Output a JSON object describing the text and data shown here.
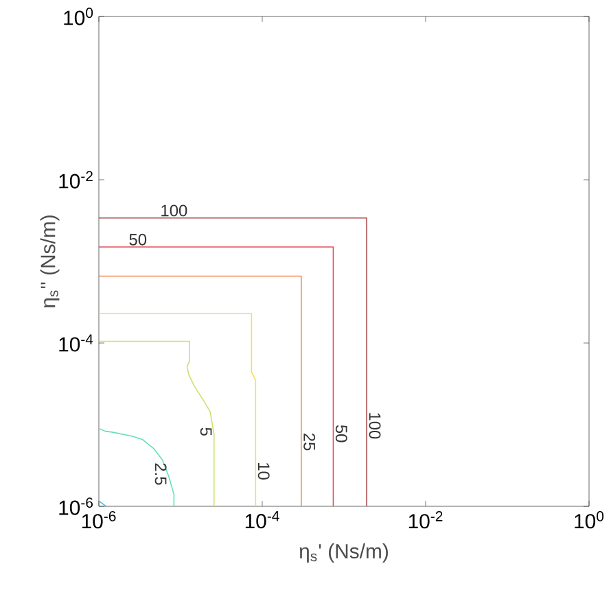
{
  "chart_data": {
    "type": "line",
    "xlabel": "η$_{s}$'   (Ns/m)",
    "ylabel": "η$_{s}$''   (Ns/m)",
    "log": "xy",
    "grid": false,
    "marker": "none",
    "line_style": "solid",
    "xlim": [
      1e-06,
      1
    ],
    "ylim": [
      1e-06,
      1
    ],
    "xticks": [
      {
        "value": 1e-06,
        "label": "10$^{-6}$"
      },
      {
        "value": 0.0001,
        "label": "10$^{-4}$"
      },
      {
        "value": 0.01,
        "label": "10$^{-2}$"
      },
      {
        "value": 1,
        "label": "10$^{0}$"
      }
    ],
    "yticks": [
      {
        "value": 1e-06,
        "label": "10$^{-6}$"
      },
      {
        "value": 0.0001,
        "label": "10$^{-4}$"
      },
      {
        "value": 0.01,
        "label": "10$^{-2}$"
      },
      {
        "value": 1,
        "label": "10$^{0}$"
      }
    ],
    "series": [
      {
        "name": "100",
        "color": "#a8484e",
        "x": [
          1e-06,
          0.0019,
          0.0019
        ],
        "values": [
          0.0034,
          0.0034,
          1e-06
        ]
      },
      {
        "name": "50",
        "color": "#e0505c",
        "x": [
          1e-06,
          0.00074,
          0.00074
        ],
        "values": [
          0.0015,
          0.0015,
          1e-06
        ]
      },
      {
        "name": "25",
        "color": "#f48a5c",
        "x": [
          1e-06,
          0.0003,
          0.0003
        ],
        "values": [
          0.00066,
          0.00066,
          1e-06
        ]
      },
      {
        "name": "10",
        "color": "#f2e05a",
        "x": [
          1e-06,
          7.4e-05,
          7.4e-05,
          8.3e-05,
          8.3e-05
        ],
        "values": [
          0.00023,
          0.00023,
          4.4e-05,
          3.5e-05,
          1e-06
        ]
      },
      {
        "name": "5",
        "color": "#c8e46c",
        "x": [
          1e-06,
          1.29e-05,
          1.29e-05,
          1.2e-05,
          1.26e-05,
          1.48e-05,
          1.9e-05,
          2.3e-05,
          2.57e-05,
          2.57e-05
        ],
        "values": [
          0.000105,
          0.000105,
          6e-05,
          5.2e-05,
          4.1e-05,
          2.95e-05,
          2e-05,
          1.45e-05,
          7.6e-06,
          1e-06
        ]
      },
      {
        "name": "2.5",
        "color": "#5ee4b4",
        "x": [
          1e-06,
          1.02e-06,
          1.2e-06,
          1.45e-06,
          2.6e-06,
          3.4e-06,
          4.7e-06,
          6e-06,
          7.2e-06,
          8.3e-06,
          8.3e-06
        ],
        "values": [
          8.9e-06,
          8.9e-06,
          8.3e-06,
          8.1e-06,
          7.2e-06,
          6.6e-06,
          5.1e-06,
          3.7e-06,
          2.3e-06,
          1.4e-06,
          1e-06
        ]
      },
      {
        "color": "#3cc4f0",
        "x": [
          1.02e-06,
          1.23e-06
        ],
        "values": [
          1.15e-06,
          1e-06
        ]
      }
    ],
    "annotations": [
      {
        "text": "100",
        "x": 8.3e-06,
        "y": 0.0034
      },
      {
        "text": "50",
        "x": 3e-06,
        "y": 0.0015
      }
    ]
  }
}
